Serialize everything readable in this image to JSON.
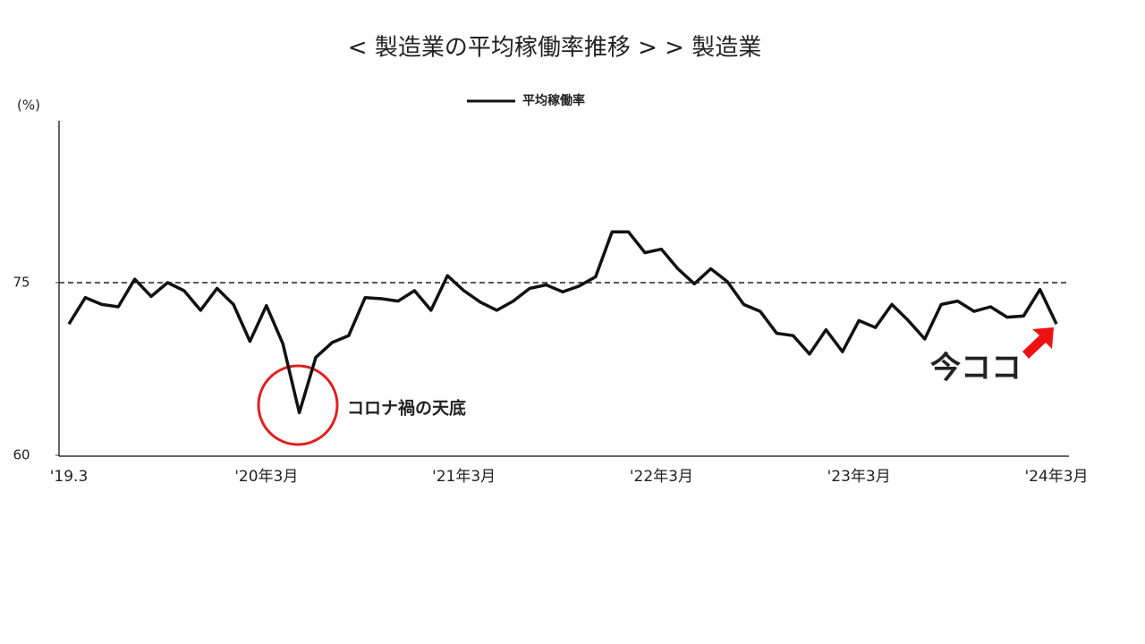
{
  "chart_data": {
    "type": "line",
    "title": "< 製造業の平均稼働率推移 > > 製造業",
    "y_label": "(%)",
    "categories": [
      "'19.3",
      null,
      null,
      null,
      null,
      null,
      null,
      null,
      null,
      null,
      null,
      null,
      "'20年3月",
      null,
      null,
      null,
      null,
      null,
      null,
      null,
      null,
      null,
      null,
      null,
      "'21年3月",
      null,
      null,
      null,
      null,
      null,
      null,
      null,
      null,
      null,
      null,
      null,
      "'22年3月",
      null,
      null,
      null,
      null,
      null,
      null,
      null,
      null,
      null,
      null,
      null,
      "'23年3月",
      null,
      null,
      null,
      null,
      null,
      null,
      null,
      null,
      null,
      null,
      null,
      "'24年3月"
    ],
    "series": [
      {
        "name": "平均稼働率",
        "color": "#111111",
        "values": [
          71.4,
          73.7,
          73.1,
          72.9,
          75.3,
          73.8,
          75.0,
          74.3,
          72.6,
          74.5,
          73.1,
          69.9,
          73.0,
          69.7,
          63.7,
          68.5,
          69.8,
          70.4,
          73.7,
          73.6,
          73.4,
          74.3,
          72.6,
          75.6,
          74.3,
          73.3,
          72.6,
          73.4,
          74.5,
          74.8,
          74.2,
          74.7,
          75.5,
          79.4,
          79.4,
          77.6,
          77.9,
          76.2,
          74.9,
          76.2,
          75.1,
          73.1,
          72.5,
          70.6,
          70.4,
          68.8,
          70.9,
          69.0,
          71.7,
          71.1,
          73.1,
          71.7,
          70.1,
          73.1,
          73.4,
          72.5,
          72.9,
          72.0,
          72.1,
          74.4,
          71.4
        ]
      }
    ],
    "ylim": [
      60,
      89
    ],
    "yticks": [
      60,
      75
    ],
    "reference_line": 75,
    "annotations": [
      "コロナ禍の天底",
      "今ココ"
    ]
  }
}
